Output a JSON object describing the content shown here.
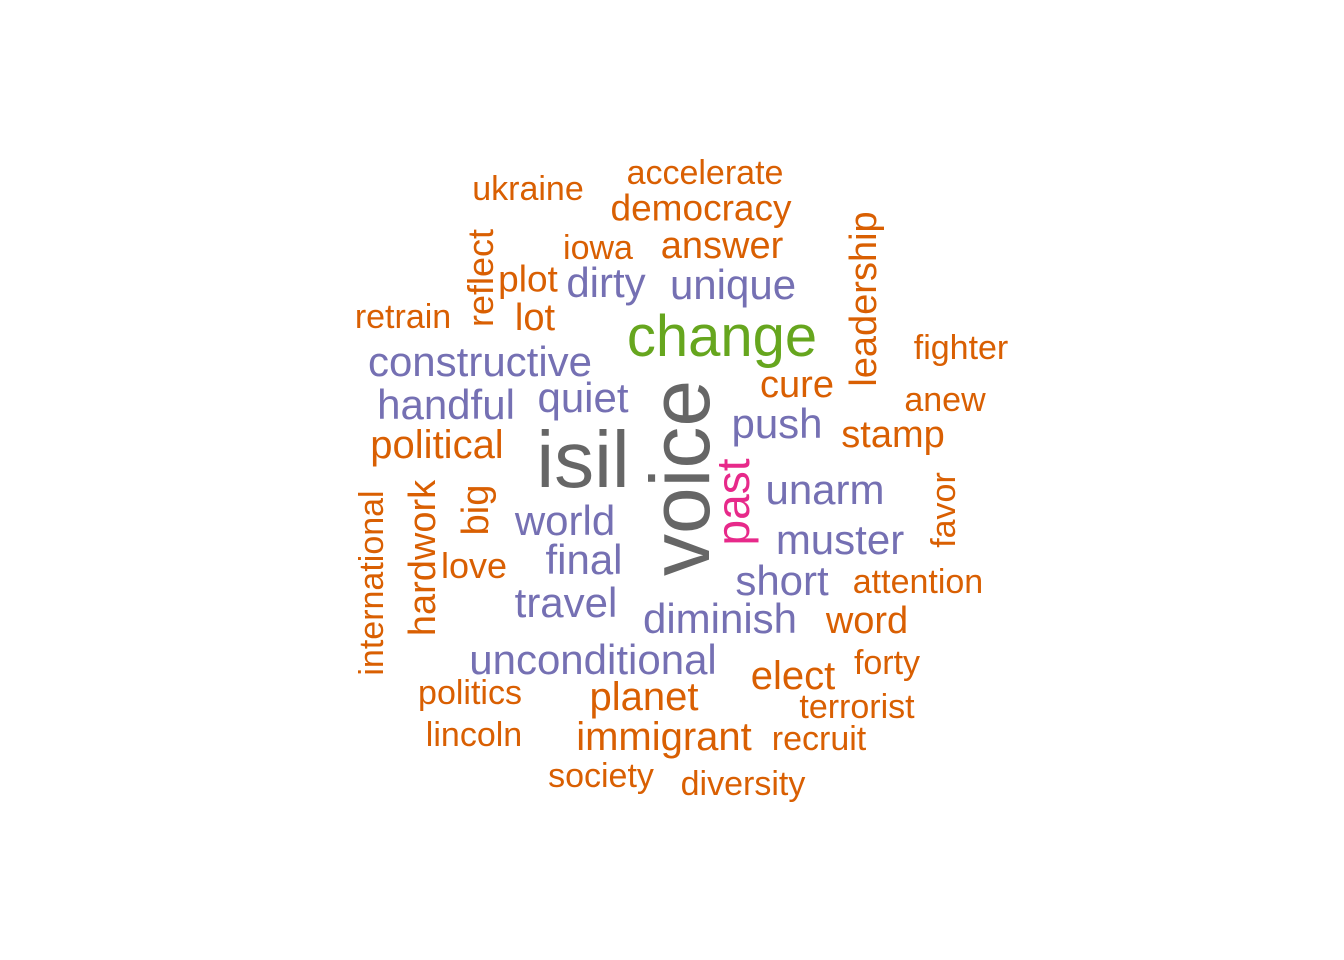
{
  "word_cloud": {
    "colors": {
      "gray": "#666666",
      "green": "#66a61e",
      "pink": "#e7298a",
      "purple": "#7570b3",
      "orange": "#d95f02"
    },
    "words": [
      "voice",
      "isil",
      "change",
      "past",
      "unique",
      "dirty",
      "constructive",
      "quiet",
      "handful",
      "push",
      "unarm",
      "world",
      "muster",
      "final",
      "short",
      "travel",
      "diminish",
      "unconditional",
      "ukraine",
      "accelerate",
      "democracy",
      "iowa",
      "answer",
      "reflect",
      "plot",
      "leadership",
      "retrain",
      "lot",
      "fighter",
      "cure",
      "anew",
      "stamp",
      "political",
      "big",
      "hardwork",
      "international",
      "favor",
      "love",
      "attention",
      "word",
      "elect",
      "forty",
      "planet",
      "politics",
      "terrorist",
      "immigrant",
      "lincoln",
      "recruit",
      "society",
      "diversity"
    ]
  }
}
